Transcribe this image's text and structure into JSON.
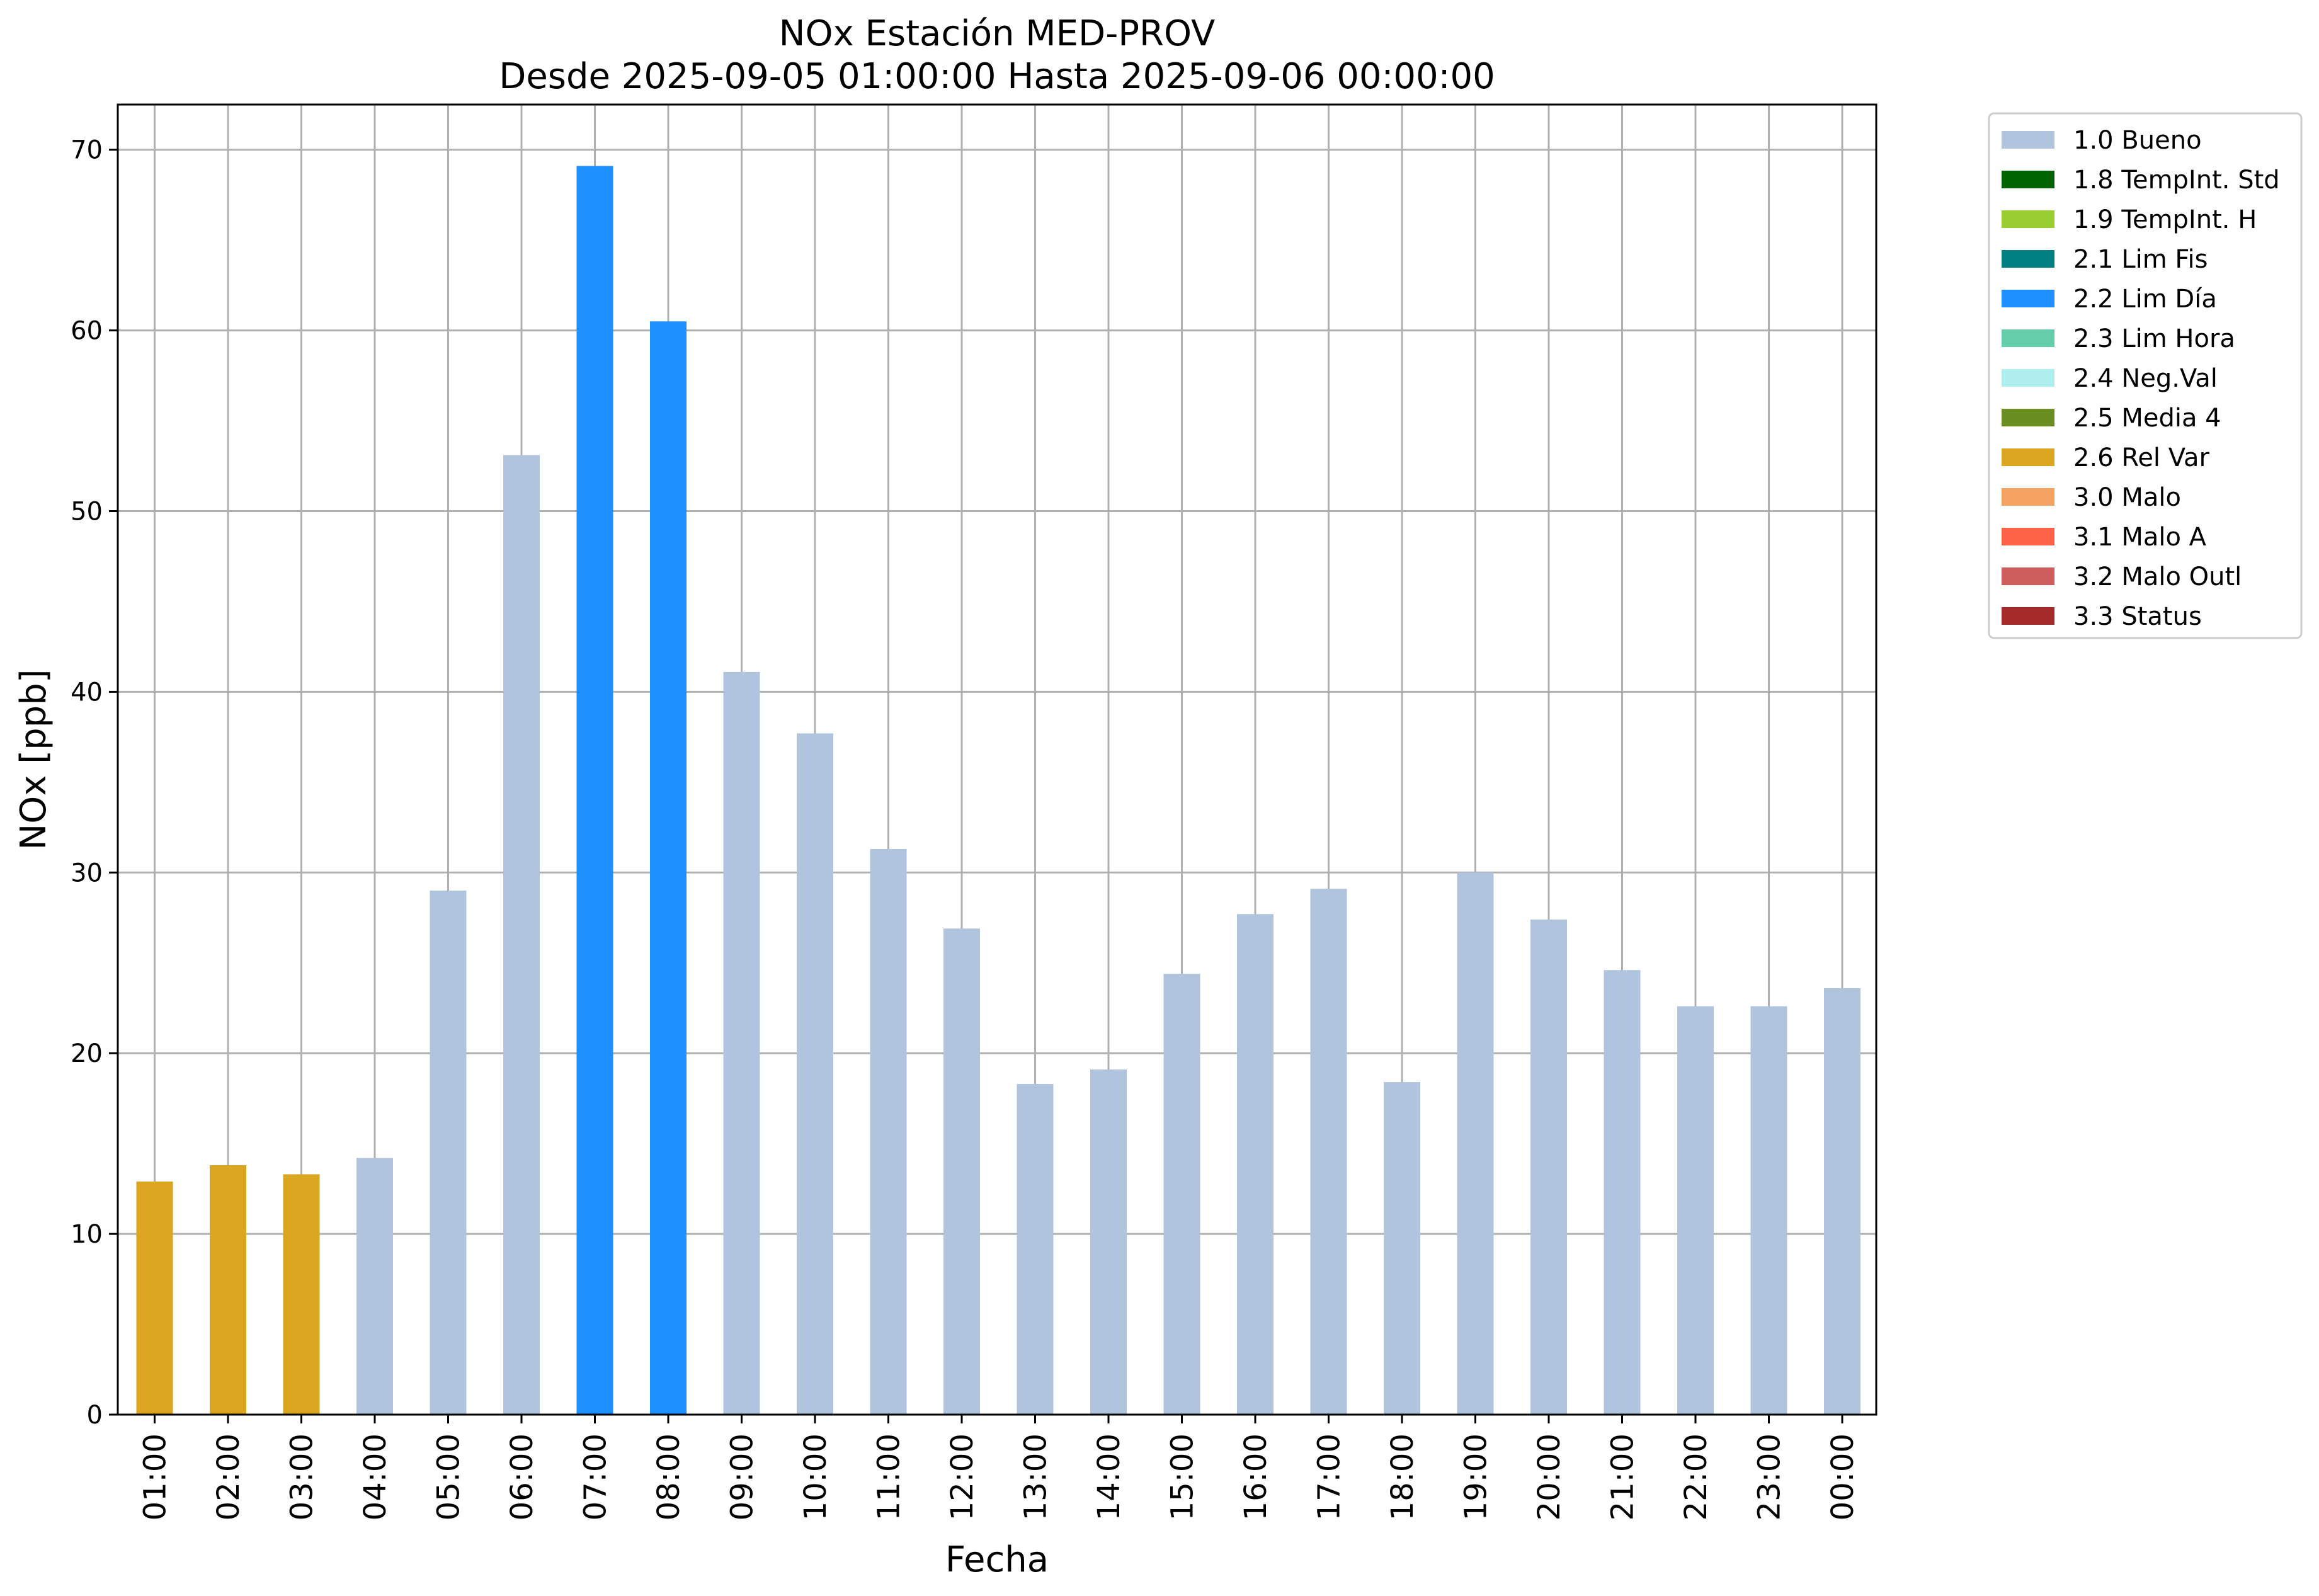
{
  "chart_data": {
    "type": "bar",
    "title": "NOx Estación MED-PROV",
    "subtitle": "Desde 2025-09-05 01:00:00 Hasta 2025-09-06 00:00:00",
    "xlabel": "Fecha",
    "ylabel": "NOx [ppb]",
    "ylim": [
      0,
      72.5
    ],
    "yticks": [
      "0",
      "10",
      "20",
      "30",
      "40",
      "50",
      "60",
      "70"
    ],
    "grid": true,
    "legend_position": "outside-top-right",
    "categories": [
      "01:00",
      "02:00",
      "03:00",
      "04:00",
      "05:00",
      "06:00",
      "07:00",
      "08:00",
      "09:00",
      "10:00",
      "11:00",
      "12:00",
      "13:00",
      "14:00",
      "15:00",
      "16:00",
      "17:00",
      "18:00",
      "19:00",
      "20:00",
      "21:00",
      "22:00",
      "23:00",
      "00:00"
    ],
    "values": [
      12.9,
      13.8,
      13.3,
      14.2,
      29.0,
      53.1,
      69.1,
      60.5,
      41.1,
      37.7,
      31.3,
      26.9,
      18.3,
      19.1,
      24.4,
      27.7,
      29.1,
      18.4,
      30.0,
      27.4,
      24.6,
      22.6,
      22.6,
      23.6
    ],
    "flags": [
      "2.6 Rel Var",
      "2.6 Rel Var",
      "2.6 Rel Var",
      "1.0 Bueno",
      "1.0 Bueno",
      "1.0 Bueno",
      "2.2 Lim Día",
      "2.2 Lim Día",
      "1.0 Bueno",
      "1.0 Bueno",
      "1.0 Bueno",
      "1.0 Bueno",
      "1.0 Bueno",
      "1.0 Bueno",
      "1.0 Bueno",
      "1.0 Bueno",
      "1.0 Bueno",
      "1.0 Bueno",
      "1.0 Bueno",
      "1.0 Bueno",
      "1.0 Bueno",
      "1.0 Bueno",
      "1.0 Bueno",
      "1.0 Bueno"
    ],
    "legend": [
      {
        "label": "1.0 Bueno",
        "color": "#b0c4de"
      },
      {
        "label": "1.8 TempInt. Std",
        "color": "#006400"
      },
      {
        "label": "1.9 TempInt. H",
        "color": "#9acd32"
      },
      {
        "label": "2.1 Lim Fis",
        "color": "#008080"
      },
      {
        "label": "2.2 Lim Día",
        "color": "#1e90ff"
      },
      {
        "label": "2.3 Lim Hora",
        "color": "#66cdaa"
      },
      {
        "label": "2.4 Neg.Val",
        "color": "#afeeee"
      },
      {
        "label": "2.5 Media 4",
        "color": "#6b8e23"
      },
      {
        "label": "2.6 Rel Var",
        "color": "#daa520"
      },
      {
        "label": "3.0 Malo",
        "color": "#f4a460"
      },
      {
        "label": "3.1 Malo A",
        "color": "#ff6347"
      },
      {
        "label": "3.2 Malo Outl",
        "color": "#cd5c5c"
      },
      {
        "label": "3.3 Status",
        "color": "#a52a2a"
      }
    ]
  }
}
